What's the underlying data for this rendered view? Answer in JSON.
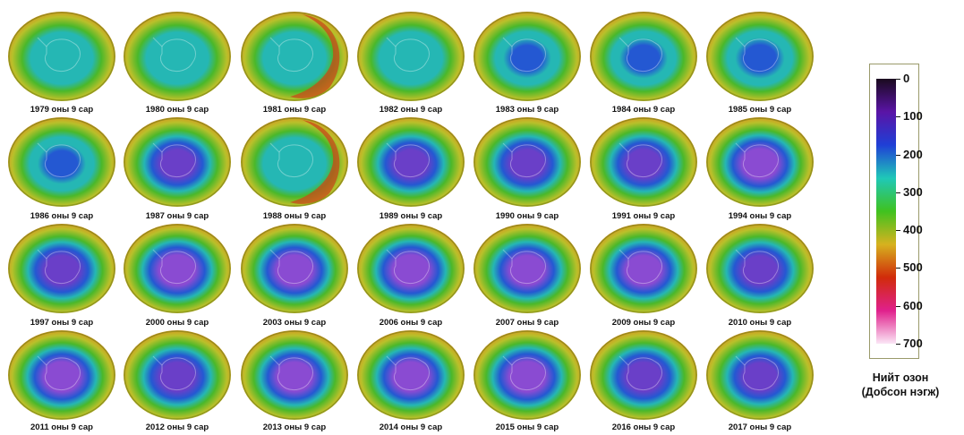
{
  "maps": [
    {
      "label": "1979 оны 9 сар",
      "hole": 0.25
    },
    {
      "label": "1980 оны 9 сар",
      "hole": 0.25
    },
    {
      "label": "1981 оны 9 сар",
      "hole": 0.28,
      "crescent": true
    },
    {
      "label": "1982 оны 9 сар",
      "hole": 0.32
    },
    {
      "label": "1983 оны 9 сар",
      "hole": 0.38
    },
    {
      "label": "1984 оны 9 сар",
      "hole": 0.42
    },
    {
      "label": "1985 оны 9 сар",
      "hole": 0.48
    },
    {
      "label": "1986 оны 9 сар",
      "hole": 0.42
    },
    {
      "label": "1987 оны 9 сар",
      "hole": 0.58
    },
    {
      "label": "1988 оны 9 сар",
      "hole": 0.28,
      "crescent": true
    },
    {
      "label": "1989 оны 9 сар",
      "hole": 0.58
    },
    {
      "label": "1990 оны 9 сар",
      "hole": 0.6
    },
    {
      "label": "1991 оны 9 сар",
      "hole": 0.62
    },
    {
      "label": "1994 оны 9 сар",
      "hole": 0.82
    },
    {
      "label": "1997 оны 9 сар",
      "hole": 0.72
    },
    {
      "label": "2000 оны 9 сар",
      "hole": 0.88
    },
    {
      "label": "2003 оны 9 сар",
      "hole": 0.85
    },
    {
      "label": "2006 оны 9 сар",
      "hole": 0.9
    },
    {
      "label": "2007 оны 9 сар",
      "hole": 0.76
    },
    {
      "label": "2009 оны 9 сар",
      "hole": 0.78
    },
    {
      "label": "2010 оны 9 сар",
      "hole": 0.66
    },
    {
      "label": "2011 оны 9 сар",
      "hole": 0.82
    },
    {
      "label": "2012 оны 9 сар",
      "hole": 0.7
    },
    {
      "label": "2013 оны 9 сар",
      "hole": 0.76
    },
    {
      "label": "2014 оны 9 сар",
      "hole": 0.78
    },
    {
      "label": "2015 оны 9 сар",
      "hole": 0.85
    },
    {
      "label": "2016 оны 9 сар",
      "hole": 0.72
    },
    {
      "label": "2017 оны 9 сар",
      "hole": 0.58
    }
  ],
  "legend": {
    "ticks": [
      "0",
      "100",
      "200",
      "300",
      "400",
      "500",
      "600",
      "700"
    ],
    "colors": [
      "#1a0a1e",
      "#5a14a6",
      "#1f3fd6",
      "#1fc8b8",
      "#3fc21f",
      "#d6b21f",
      "#d12b0a",
      "#e0208c",
      "#fbe6f6"
    ],
    "title_line1": "Нийт озон",
    "title_line2": "(Добсон нэгж)"
  },
  "palette": {
    "outer_green": "#4ab82a",
    "ring_orange": "#d59a22",
    "ring_yellow": "#b9c02a",
    "teal": "#25b7b4",
    "blue": "#2458d2",
    "purple": "#6a3fc8",
    "violet": "#8a4bd2",
    "red_crescent": "#c9481a"
  }
}
